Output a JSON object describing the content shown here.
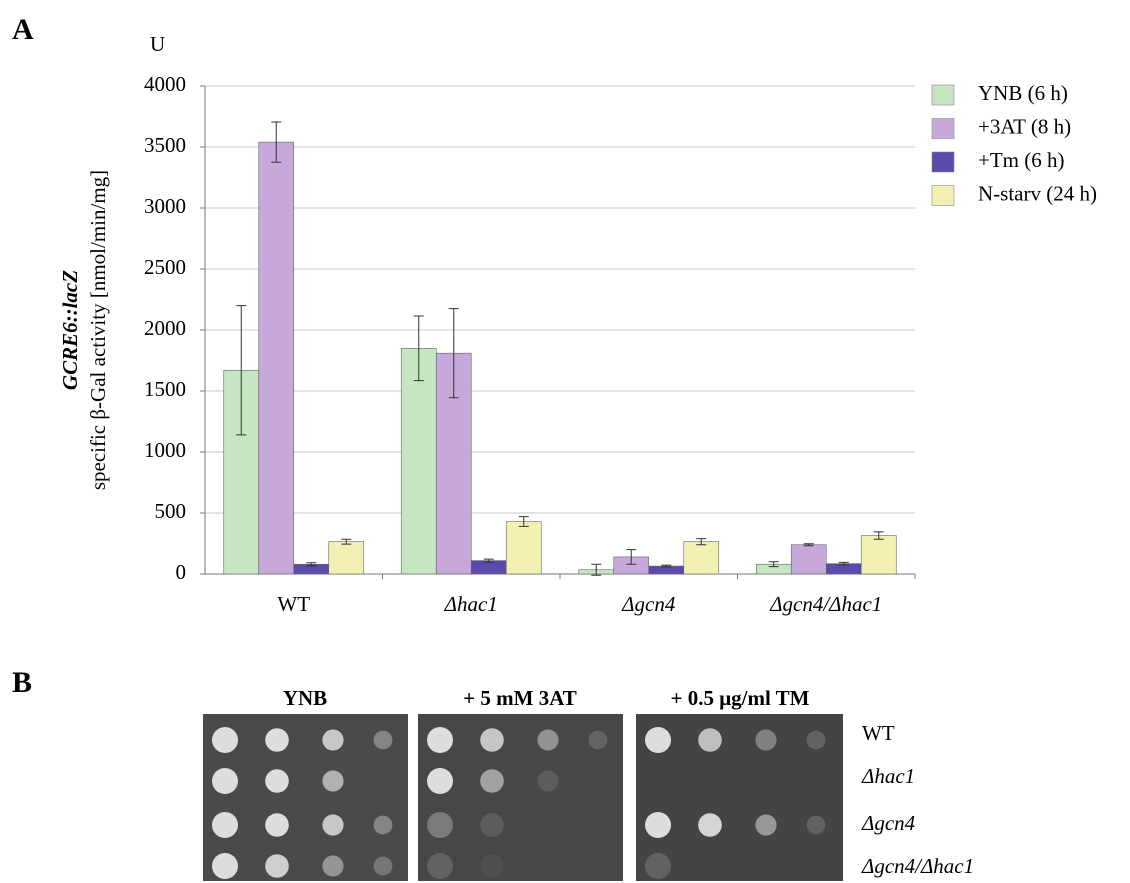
{
  "chart_data": {
    "type": "bar",
    "y_unit": "U",
    "y_label_title": "GCRE6::lacZ",
    "y_label": "specific β-Gal activity [nmol/min/mg]",
    "categories": [
      "WT",
      "Δhac1",
      "Δgcn4",
      "Δgcn4/Δhac1"
    ],
    "series": [
      {
        "name": "YNB (6 h)",
        "color": "#c5e5c3",
        "values": [
          1670,
          1850,
          35,
          80
        ],
        "errors": [
          530,
          265,
          45,
          20
        ]
      },
      {
        "name": "+3AT (8 h)",
        "color": "#c6a9da",
        "values": [
          3540,
          1810,
          140,
          240
        ],
        "errors": [
          165,
          365,
          60,
          8
        ]
      },
      {
        "name": "+Tm (6 h)",
        "color": "#5b4aab",
        "values": [
          80,
          110,
          65,
          85
        ],
        "errors": [
          12,
          12,
          8,
          10
        ]
      },
      {
        "name": "N-starv (24 h)",
        "color": "#f3f0b4",
        "values": [
          265,
          430,
          265,
          315
        ],
        "errors": [
          20,
          40,
          25,
          30
        ]
      }
    ],
    "ylim": [
      0,
      4000
    ],
    "yticks": [
      0,
      500,
      1000,
      1500,
      2000,
      2500,
      3000,
      3500,
      4000
    ],
    "grid": true,
    "legend": "right"
  },
  "panel_labels": [
    "A",
    "B"
  ],
  "spot_assay": {
    "conditions": [
      "YNB",
      "+ 5 mM 3AT",
      "+ 0.5 μg/ml TM"
    ],
    "strains": [
      "WT",
      "Δhac1",
      "Δgcn4",
      "Δgcn4/Δhac1"
    ]
  }
}
